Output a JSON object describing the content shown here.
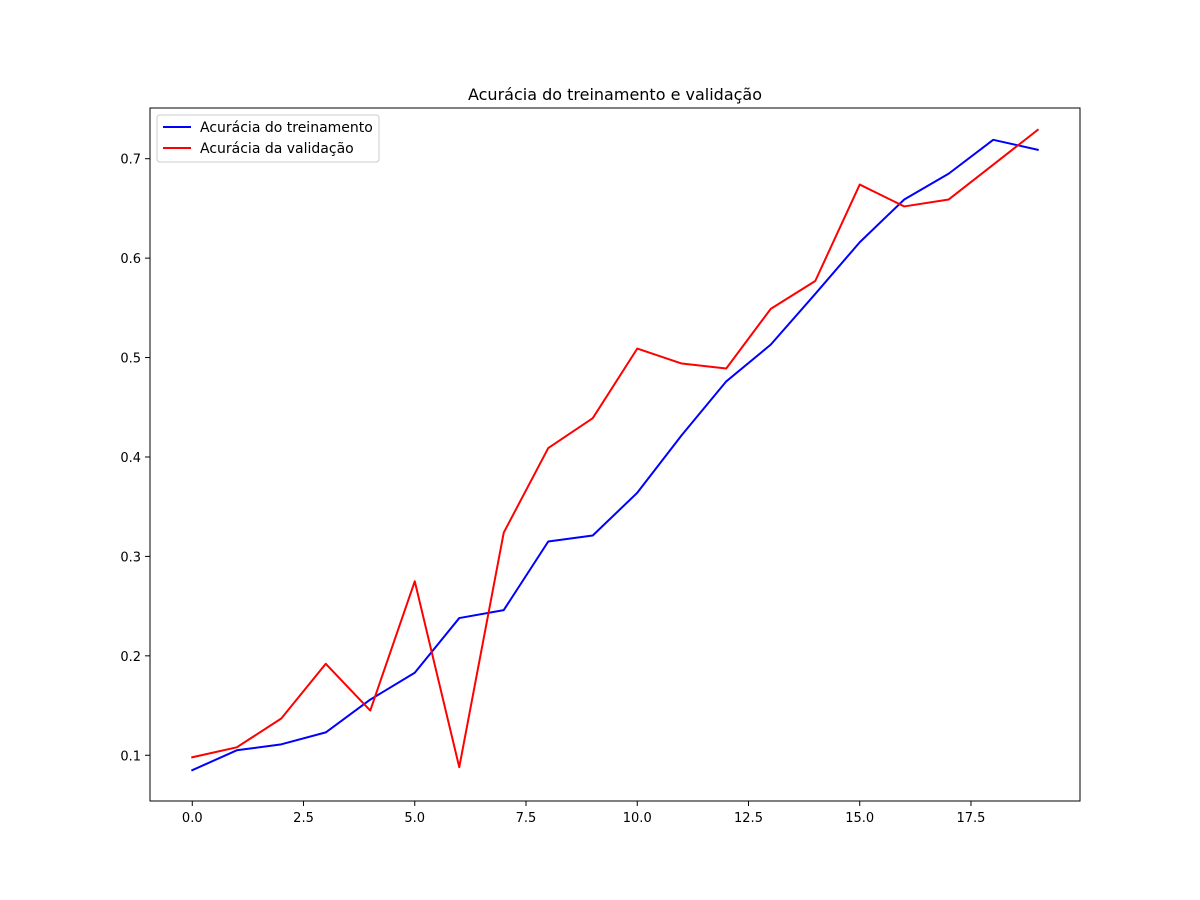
{
  "chart_data": {
    "type": "line",
    "title": "Acurácia do treinamento e validação",
    "xlabel": "",
    "ylabel": "",
    "xlim": [
      -0.95,
      19.95
    ],
    "ylim": [
      0.054,
      0.751
    ],
    "xticks": [
      0.0,
      2.5,
      5.0,
      7.5,
      10.0,
      12.5,
      15.0,
      17.5
    ],
    "xtick_labels": [
      "0.0",
      "2.5",
      "5.0",
      "7.5",
      "10.0",
      "12.5",
      "15.0",
      "17.5"
    ],
    "yticks": [
      0.1,
      0.2,
      0.3,
      0.4,
      0.5,
      0.6,
      0.7
    ],
    "ytick_labels": [
      "0.1",
      "0.2",
      "0.3",
      "0.4",
      "0.5",
      "0.6",
      "0.7"
    ],
    "grid": false,
    "legend_position": "upper-left",
    "x": [
      0,
      1,
      2,
      3,
      4,
      5,
      6,
      7,
      8,
      9,
      10,
      11,
      12,
      13,
      14,
      15,
      16,
      17,
      18,
      19
    ],
    "series": [
      {
        "name": "Acurácia do treinamento",
        "color": "#0000ff",
        "values": [
          0.085,
          0.105,
          0.111,
          0.123,
          0.156,
          0.183,
          0.238,
          0.246,
          0.315,
          0.321,
          0.364,
          0.422,
          0.476,
          0.513,
          0.564,
          0.616,
          0.659,
          0.685,
          0.719,
          0.709
        ]
      },
      {
        "name": "Acurácia da validação",
        "color": "#ff0000",
        "values": [
          0.098,
          0.108,
          0.137,
          0.192,
          0.145,
          0.275,
          0.088,
          0.324,
          0.409,
          0.439,
          0.509,
          0.494,
          0.489,
          0.549,
          0.577,
          0.674,
          0.652,
          0.659,
          0.694,
          0.729
        ]
      }
    ]
  }
}
